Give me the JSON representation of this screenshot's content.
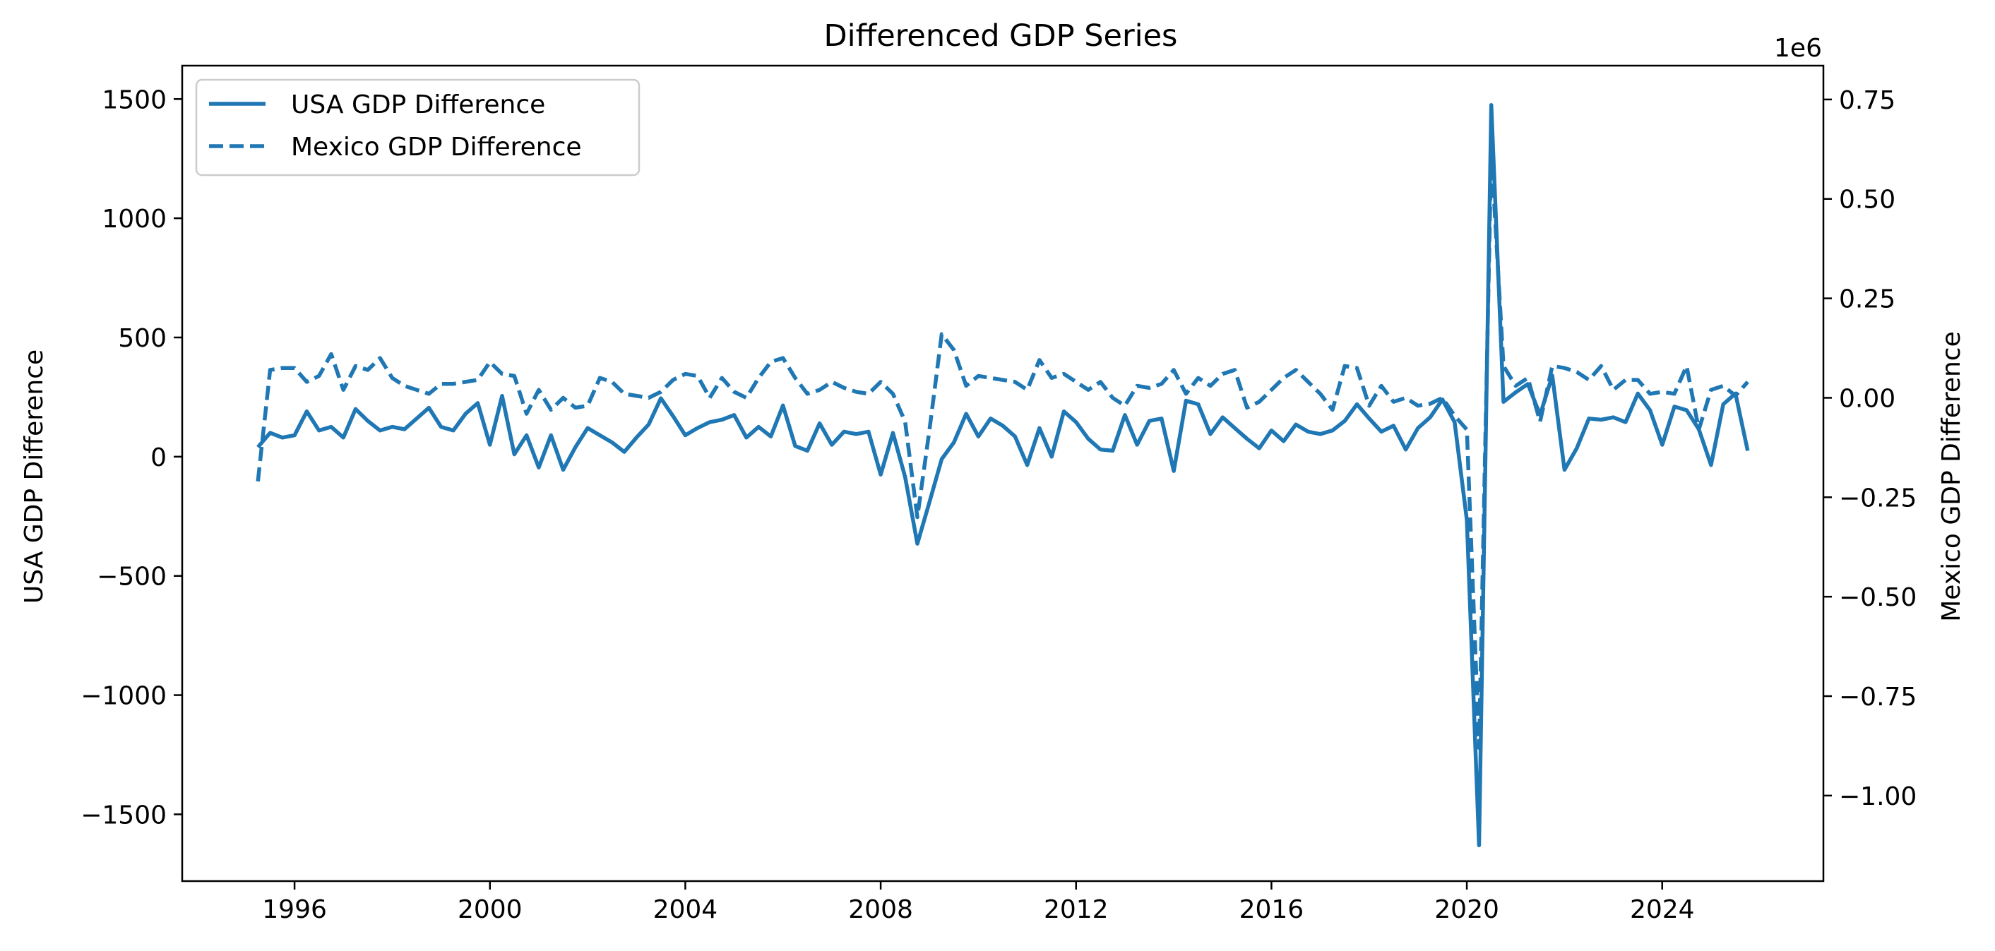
{
  "chart_data": {
    "type": "line",
    "title": "Differenced GDP Series",
    "xlabel": "",
    "ylabel_left": "USA GDP Difference",
    "ylabel_right": "Mexico GDP Difference",
    "right_axis_offset_text": "1e6",
    "xlim": [
      1993.7,
      2027.3
    ],
    "ylim_left": [
      -1780,
      1640
    ],
    "ylim_right": [
      -1.215,
      0.835
    ],
    "x_ticks": [
      1996,
      2000,
      2004,
      2008,
      2012,
      2016,
      2020,
      2024
    ],
    "x_tick_labels": [
      "1996",
      "2000",
      "2004",
      "2008",
      "2012",
      "2016",
      "2020",
      "2024"
    ],
    "y_left_ticks": [
      -1500,
      -1000,
      -500,
      0,
      500,
      1000,
      1500
    ],
    "y_left_tick_labels": [
      "−1500",
      "−1000",
      "−500",
      "0",
      "500",
      "1000",
      "1500"
    ],
    "y_right_ticks": [
      -1.0,
      -0.75,
      -0.5,
      -0.25,
      0.0,
      0.25,
      0.5,
      0.75
    ],
    "y_right_tick_labels": [
      "−1.00",
      "−0.75",
      "−0.50",
      "−0.25",
      "0.00",
      "0.25",
      "0.50",
      "0.75"
    ],
    "grid": false,
    "legend_position": "upper-left",
    "color": "#1f77b4",
    "series": [
      {
        "name": "USA GDP Difference",
        "axis": "left",
        "style": "solid",
        "x": [
          1995.25,
          1995.5,
          1995.75,
          1996.0,
          1996.25,
          1996.5,
          1996.75,
          1997.0,
          1997.25,
          1997.5,
          1997.75,
          1998.0,
          1998.25,
          1998.5,
          1998.75,
          1999.0,
          1999.25,
          1999.5,
          1999.75,
          2000.0,
          2000.25,
          2000.5,
          2000.75,
          2001.0,
          2001.25,
          2001.5,
          2001.75,
          2002.0,
          2002.25,
          2002.5,
          2002.75,
          2003.0,
          2003.25,
          2003.5,
          2003.75,
          2004.0,
          2004.25,
          2004.5,
          2004.75,
          2005.0,
          2005.25,
          2005.5,
          2005.75,
          2006.0,
          2006.25,
          2006.5,
          2006.75,
          2007.0,
          2007.25,
          2007.5,
          2007.75,
          2008.0,
          2008.25,
          2008.5,
          2008.75,
          2009.0,
          2009.25,
          2009.5,
          2009.75,
          2010.0,
          2010.25,
          2010.5,
          2010.75,
          2011.0,
          2011.25,
          2011.5,
          2011.75,
          2012.0,
          2012.25,
          2012.5,
          2012.75,
          2013.0,
          2013.25,
          2013.5,
          2013.75,
          2014.0,
          2014.25,
          2014.5,
          2014.75,
          2015.0,
          2015.25,
          2015.5,
          2015.75,
          2016.0,
          2016.25,
          2016.5,
          2016.75,
          2017.0,
          2017.25,
          2017.5,
          2017.75,
          2018.0,
          2018.25,
          2018.5,
          2018.75,
          2019.0,
          2019.25,
          2019.5,
          2019.75,
          2020.0,
          2020.25,
          2020.5,
          2020.75,
          2021.0,
          2021.25,
          2021.5,
          2021.75,
          2022.0,
          2022.25,
          2022.5,
          2022.75,
          2023.0,
          2023.25,
          2023.5,
          2023.75,
          2024.0,
          2024.25,
          2024.5,
          2024.75,
          2025.0,
          2025.25,
          2025.5,
          2025.75
        ],
        "values": [
          40,
          100,
          80,
          90,
          190,
          110,
          125,
          80,
          200,
          150,
          110,
          125,
          115,
          160,
          205,
          125,
          110,
          180,
          225,
          50,
          255,
          10,
          90,
          -45,
          90,
          -55,
          40,
          120,
          90,
          60,
          20,
          80,
          135,
          245,
          170,
          90,
          120,
          145,
          155,
          175,
          80,
          125,
          85,
          215,
          45,
          25,
          140,
          50,
          105,
          95,
          105,
          -75,
          100,
          -85,
          -365,
          -190,
          -10,
          60,
          180,
          85,
          160,
          130,
          85,
          -35,
          120,
          0,
          190,
          145,
          75,
          30,
          25,
          175,
          50,
          150,
          160,
          -60,
          235,
          220,
          95,
          165,
          120,
          75,
          35,
          110,
          65,
          135,
          105,
          95,
          110,
          150,
          220,
          160,
          105,
          130,
          30,
          120,
          165,
          240,
          145,
          -265,
          -1630,
          1475,
          230,
          270,
          305,
          175,
          340,
          -55,
          35,
          160,
          155,
          165,
          145,
          265,
          195,
          50,
          210,
          195,
          115,
          -35,
          220,
          265,
          25
        ]
      },
      {
        "name": "Mexico GDP Difference",
        "axis": "right",
        "style": "dashed",
        "x": [
          1995.25,
          1995.5,
          1995.75,
          1996.0,
          1996.25,
          1996.5,
          1996.75,
          1997.0,
          1997.25,
          1997.5,
          1997.75,
          1998.0,
          1998.25,
          1998.5,
          1998.75,
          1999.0,
          1999.25,
          1999.5,
          1999.75,
          2000.0,
          2000.25,
          2000.5,
          2000.75,
          2001.0,
          2001.25,
          2001.5,
          2001.75,
          2002.0,
          2002.25,
          2002.5,
          2002.75,
          2003.0,
          2003.25,
          2003.5,
          2003.75,
          2004.0,
          2004.25,
          2004.5,
          2004.75,
          2005.0,
          2005.25,
          2005.5,
          2005.75,
          2006.0,
          2006.25,
          2006.5,
          2006.75,
          2007.0,
          2007.25,
          2007.5,
          2007.75,
          2008.0,
          2008.25,
          2008.5,
          2008.75,
          2009.0,
          2009.25,
          2009.5,
          2009.75,
          2010.0,
          2010.25,
          2010.5,
          2010.75,
          2011.0,
          2011.25,
          2011.5,
          2011.75,
          2012.0,
          2012.25,
          2012.5,
          2012.75,
          2013.0,
          2013.25,
          2013.5,
          2013.75,
          2014.0,
          2014.25,
          2014.5,
          2014.75,
          2015.0,
          2015.25,
          2015.5,
          2015.75,
          2016.0,
          2016.25,
          2016.5,
          2016.75,
          2017.0,
          2017.25,
          2017.5,
          2017.75,
          2018.0,
          2018.25,
          2018.5,
          2018.75,
          2019.0,
          2019.25,
          2019.5,
          2019.75,
          2020.0,
          2020.25,
          2020.5,
          2020.75,
          2021.0,
          2021.25,
          2021.5,
          2021.75,
          2022.0,
          2022.25,
          2022.5,
          2022.75,
          2023.0,
          2023.25,
          2023.5,
          2023.75,
          2024.0,
          2024.25,
          2024.5,
          2024.75,
          2025.0,
          2025.25,
          2025.5,
          2025.75
        ],
        "values": [
          -0.21,
          0.07,
          0.075,
          0.075,
          0.04,
          0.055,
          0.11,
          0.02,
          0.08,
          0.07,
          0.1,
          0.05,
          0.03,
          0.02,
          0.01,
          0.035,
          0.035,
          0.04,
          0.045,
          0.09,
          0.06,
          0.055,
          -0.04,
          0.02,
          -0.03,
          0.0,
          -0.025,
          -0.02,
          0.05,
          0.04,
          0.01,
          0.005,
          0.0,
          0.015,
          0.045,
          0.06,
          0.055,
          0.0,
          0.05,
          0.015,
          0.0,
          0.05,
          0.09,
          0.1,
          0.05,
          0.01,
          0.02,
          0.04,
          0.025,
          0.015,
          0.01,
          0.04,
          0.01,
          -0.06,
          -0.3,
          -0.08,
          0.16,
          0.12,
          0.03,
          0.055,
          0.05,
          0.045,
          0.04,
          0.02,
          0.095,
          0.05,
          0.06,
          0.04,
          0.02,
          0.04,
          0.0,
          -0.02,
          0.03,
          0.025,
          0.035,
          0.07,
          0.01,
          0.05,
          0.03,
          0.06,
          0.07,
          -0.025,
          -0.01,
          0.02,
          0.05,
          0.07,
          0.04,
          0.01,
          -0.03,
          0.08,
          0.075,
          -0.02,
          0.03,
          -0.01,
          0.0,
          -0.02,
          -0.015,
          0.0,
          -0.045,
          -0.08,
          -0.88,
          0.62,
          0.08,
          0.03,
          0.05,
          -0.06,
          0.08,
          0.075,
          0.065,
          0.045,
          0.08,
          0.02,
          0.045,
          0.045,
          0.01,
          0.015,
          0.01,
          0.08,
          -0.08,
          0.02,
          0.03,
          0.005,
          0.04
        ]
      }
    ]
  }
}
